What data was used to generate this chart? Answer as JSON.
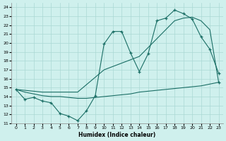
{
  "xlabel": "Humidex (Indice chaleur)",
  "xlim": [
    -0.5,
    23.5
  ],
  "ylim": [
    11,
    24.5
  ],
  "yticks": [
    11,
    12,
    13,
    14,
    15,
    16,
    17,
    18,
    19,
    20,
    21,
    22,
    23,
    24
  ],
  "xticks": [
    0,
    1,
    2,
    3,
    4,
    5,
    6,
    7,
    8,
    9,
    10,
    11,
    12,
    13,
    14,
    15,
    16,
    17,
    18,
    19,
    20,
    21,
    22,
    23
  ],
  "bg_color": "#cff0ed",
  "grid_color": "#aad8d4",
  "line_color": "#1a6e65",
  "line1_x": [
    0,
    1,
    2,
    3,
    4,
    5,
    6,
    7,
    8,
    9,
    10,
    11,
    12,
    13,
    14,
    15,
    16,
    17,
    18,
    19,
    20,
    21,
    22,
    23
  ],
  "line1_y": [
    14.8,
    13.7,
    13.9,
    13.5,
    13.3,
    12.1,
    11.8,
    11.3,
    12.4,
    14.1,
    19.9,
    21.3,
    21.3,
    18.9,
    16.8,
    18.8,
    22.5,
    22.8,
    23.7,
    23.3,
    22.7,
    20.7,
    19.3,
    16.6
  ],
  "line2_x": [
    0,
    3,
    7,
    10,
    14,
    17,
    18,
    19,
    20,
    21,
    22,
    23
  ],
  "line2_y": [
    14.8,
    14.5,
    14.5,
    17.0,
    18.5,
    21.5,
    22.5,
    22.8,
    22.9,
    22.5,
    21.5,
    15.6
  ],
  "line3_x": [
    0,
    1,
    2,
    3,
    4,
    5,
    6,
    7,
    8,
    9,
    10,
    11,
    12,
    13,
    14,
    15,
    16,
    17,
    18,
    19,
    20,
    21,
    22,
    23
  ],
  "line3_y": [
    14.8,
    14.5,
    14.3,
    14.1,
    14.0,
    14.0,
    13.9,
    13.8,
    13.8,
    13.9,
    14.0,
    14.1,
    14.2,
    14.3,
    14.5,
    14.6,
    14.7,
    14.8,
    14.9,
    15.0,
    15.1,
    15.2,
    15.4,
    15.6
  ]
}
